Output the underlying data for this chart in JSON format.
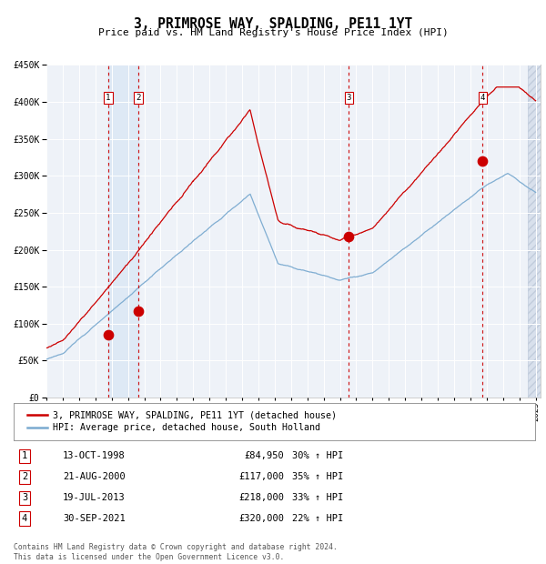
{
  "title": "3, PRIMROSE WAY, SPALDING, PE11 1YT",
  "subtitle": "Price paid vs. HM Land Registry's House Price Index (HPI)",
  "legend_label_red": "3, PRIMROSE WAY, SPALDING, PE11 1YT (detached house)",
  "legend_label_blue": "HPI: Average price, detached house, South Holland",
  "footer": "Contains HM Land Registry data © Crown copyright and database right 2024.\nThis data is licensed under the Open Government Licence v3.0.",
  "transactions": [
    {
      "num": 1,
      "date": "13-OCT-1998",
      "year": 1998.79,
      "price": 84950,
      "hpi_pct": "30% ↑ HPI"
    },
    {
      "num": 2,
      "date": "21-AUG-2000",
      "year": 2000.64,
      "price": 117000,
      "hpi_pct": "35% ↑ HPI"
    },
    {
      "num": 3,
      "date": "19-JUL-2013",
      "year": 2013.55,
      "price": 218000,
      "hpi_pct": "33% ↑ HPI"
    },
    {
      "num": 4,
      "date": "30-SEP-2021",
      "year": 2021.75,
      "price": 320000,
      "hpi_pct": "22% ↑ HPI"
    }
  ],
  "ylim": [
    0,
    450000
  ],
  "yticks": [
    0,
    50000,
    100000,
    150000,
    200000,
    250000,
    300000,
    350000,
    400000,
    450000
  ],
  "xlim_start": 1995.0,
  "xlim_end": 2025.3,
  "hatch_start": 2024.5,
  "bg_color": "#eef2f8",
  "red_color": "#cc0000",
  "blue_color": "#7aaad0",
  "dashed_color": "#cc0000",
  "highlight_fill": "#dce8f5",
  "grid_color": "#ffffff",
  "box_color": "#cc0000",
  "hatch_bg": "#d8e0ec"
}
